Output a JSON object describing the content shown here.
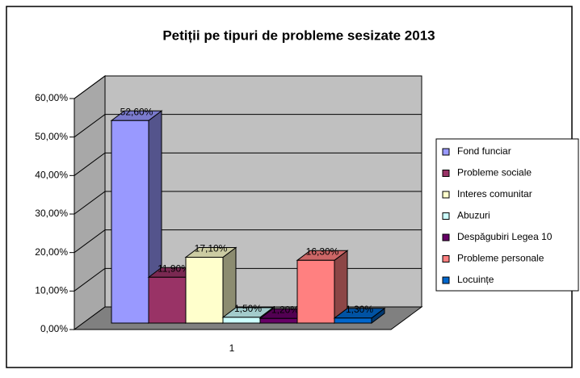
{
  "chart_data": {
    "type": "bar3d",
    "title": "Petiții pe tipuri de probleme sesizate 2013",
    "categories": [
      "1"
    ],
    "series": [
      {
        "name": "Fond funciar",
        "color": "#9999ff",
        "values": [
          52.6
        ],
        "value_labels": [
          "52,60%"
        ]
      },
      {
        "name": "Probleme sociale",
        "color": "#993366",
        "values": [
          11.9
        ],
        "value_labels": [
          "11,90%"
        ]
      },
      {
        "name": "Interes comunitar",
        "color": "#ffffcc",
        "values": [
          17.1
        ],
        "value_labels": [
          "17,10%"
        ]
      },
      {
        "name": "Abuzuri",
        "color": "#ccffff",
        "values": [
          1.5
        ],
        "value_labels": [
          "1,50%"
        ]
      },
      {
        "name": "Despăgubiri Legea 10",
        "color": "#660066",
        "values": [
          1.2
        ],
        "value_labels": [
          "1,20%"
        ]
      },
      {
        "name": "Probleme personale",
        "color": "#ff8080",
        "values": [
          16.3
        ],
        "value_labels": [
          "16,30%"
        ]
      },
      {
        "name": "Locuințe",
        "color": "#0066cc",
        "values": [
          1.3
        ],
        "value_labels": [
          "1,30%"
        ]
      }
    ],
    "ylim": [
      0,
      60
    ],
    "yticks": [
      {
        "value": 0,
        "label": "0,00%"
      },
      {
        "value": 10,
        "label": "10,00%"
      },
      {
        "value": 20,
        "label": "20,00%"
      },
      {
        "value": 30,
        "label": "30,00%"
      },
      {
        "value": 40,
        "label": "40,00%"
      },
      {
        "value": 50,
        "label": "50,00%"
      },
      {
        "value": 60,
        "label": "60,00%"
      }
    ],
    "grid": true,
    "legend": "right"
  }
}
